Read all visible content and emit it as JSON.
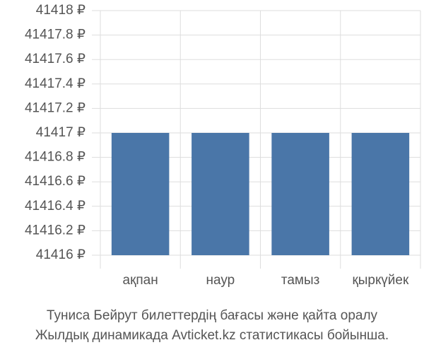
{
  "chart_data": {
    "type": "bar",
    "title": "Туниса Бейрут билеттердің бағасы және қайта оралу",
    "subtitle": "Жылдық динамикада Avticket.kz статистикасы бойынша.",
    "categories": [
      "ақпан",
      "наур",
      "тамыз",
      "қыркүйек"
    ],
    "values": [
      41417,
      41417,
      41417,
      41417
    ],
    "color": "#4a76a8",
    "ylim": [
      41416,
      41418
    ],
    "yticks": [
      {
        "value": 41416,
        "label": "41416 ₽"
      },
      {
        "value": 41416.2,
        "label": "41416.2 ₽"
      },
      {
        "value": 41416.4,
        "label": "41416.4 ₽"
      },
      {
        "value": 41416.6,
        "label": "41416.6 ₽"
      },
      {
        "value": 41416.8,
        "label": "41416.8 ₽"
      },
      {
        "value": 41417,
        "label": "41417 ₽"
      },
      {
        "value": 41417.2,
        "label": "41417.2 ₽"
      },
      {
        "value": 41417.4,
        "label": "41417.4 ₽"
      },
      {
        "value": 41417.6,
        "label": "41417.6 ₽"
      },
      {
        "value": 41417.8,
        "label": "41417.8 ₽"
      },
      {
        "value": 41418,
        "label": "41418 ₽"
      }
    ],
    "grid": true
  }
}
